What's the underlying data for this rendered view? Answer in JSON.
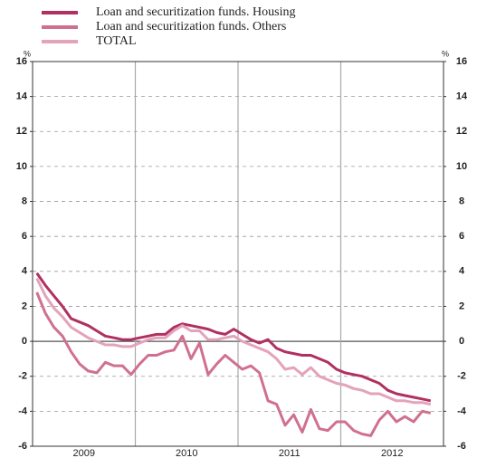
{
  "chart_data": {
    "type": "line",
    "y_unit": "%",
    "categories": [
      null,
      null,
      null,
      null,
      null,
      null,
      null,
      null,
      null,
      null,
      null,
      null,
      null,
      null,
      null,
      null,
      null,
      null,
      null,
      null,
      null,
      null,
      null,
      null,
      null,
      null,
      null,
      null,
      null,
      null,
      null,
      null,
      null,
      null,
      null,
      null,
      null,
      null,
      null,
      null,
      null,
      null,
      null,
      null,
      null,
      null,
      null
    ],
    "year_labels": [
      "2009",
      "2010",
      "2011",
      "2012"
    ],
    "ylim": [
      -6,
      16
    ],
    "yticks": [
      -6,
      -4,
      -2,
      0,
      2,
      4,
      6,
      8,
      10,
      12,
      14,
      16
    ],
    "grid": true,
    "series": [
      {
        "name": "Loan and securitization funds. Housing",
        "color": "#b03060",
        "values": [
          3.9,
          3.2,
          2.6,
          2.0,
          1.3,
          1.1,
          0.9,
          0.6,
          0.3,
          0.2,
          0.1,
          0.1,
          0.2,
          0.3,
          0.4,
          0.4,
          0.8,
          1.0,
          0.9,
          0.8,
          0.7,
          0.5,
          0.4,
          0.7,
          0.4,
          0.1,
          -0.1,
          0.1,
          -0.4,
          -0.6,
          -0.7,
          -0.8,
          -0.8,
          -1.0,
          -1.2,
          -1.6,
          -1.8,
          -1.9,
          -2.0,
          -2.2,
          -2.4,
          -2.8,
          -3.0,
          -3.1,
          -3.2,
          -3.3,
          -3.4
        ]
      },
      {
        "name": "Loan and securitization funds. Others",
        "color": "#d0708f",
        "values": [
          2.8,
          1.6,
          0.8,
          0.3,
          -0.6,
          -1.3,
          -1.7,
          -1.8,
          -1.2,
          -1.4,
          -1.4,
          -1.9,
          -1.3,
          -0.8,
          -0.8,
          -0.6,
          -0.5,
          0.3,
          -1.0,
          -0.1,
          -1.9,
          -1.3,
          -0.8,
          -1.2,
          -1.6,
          -1.4,
          -1.8,
          -3.4,
          -3.6,
          -4.8,
          -4.2,
          -5.2,
          -3.9,
          -5.0,
          -5.1,
          -4.6,
          -4.6,
          -5.1,
          -5.3,
          -5.4,
          -4.5,
          -4.0,
          -4.6,
          -4.3,
          -4.6,
          -4.0,
          -4.1
        ]
      },
      {
        "name": "TOTAL",
        "color": "#e3a3bb",
        "values": [
          3.6,
          2.6,
          1.9,
          1.4,
          0.8,
          0.5,
          0.2,
          0.0,
          -0.2,
          -0.2,
          -0.3,
          -0.3,
          -0.1,
          0.1,
          0.2,
          0.2,
          0.6,
          0.9,
          0.6,
          0.6,
          0.1,
          0.1,
          0.2,
          0.3,
          0.0,
          -0.2,
          -0.4,
          -0.6,
          -1.0,
          -1.6,
          -1.5,
          -1.9,
          -1.5,
          -2.0,
          -2.2,
          -2.4,
          -2.5,
          -2.7,
          -2.8,
          -3.0,
          -3.0,
          -3.2,
          -3.4,
          -3.4,
          -3.5,
          -3.5,
          -3.6
        ]
      }
    ]
  }
}
